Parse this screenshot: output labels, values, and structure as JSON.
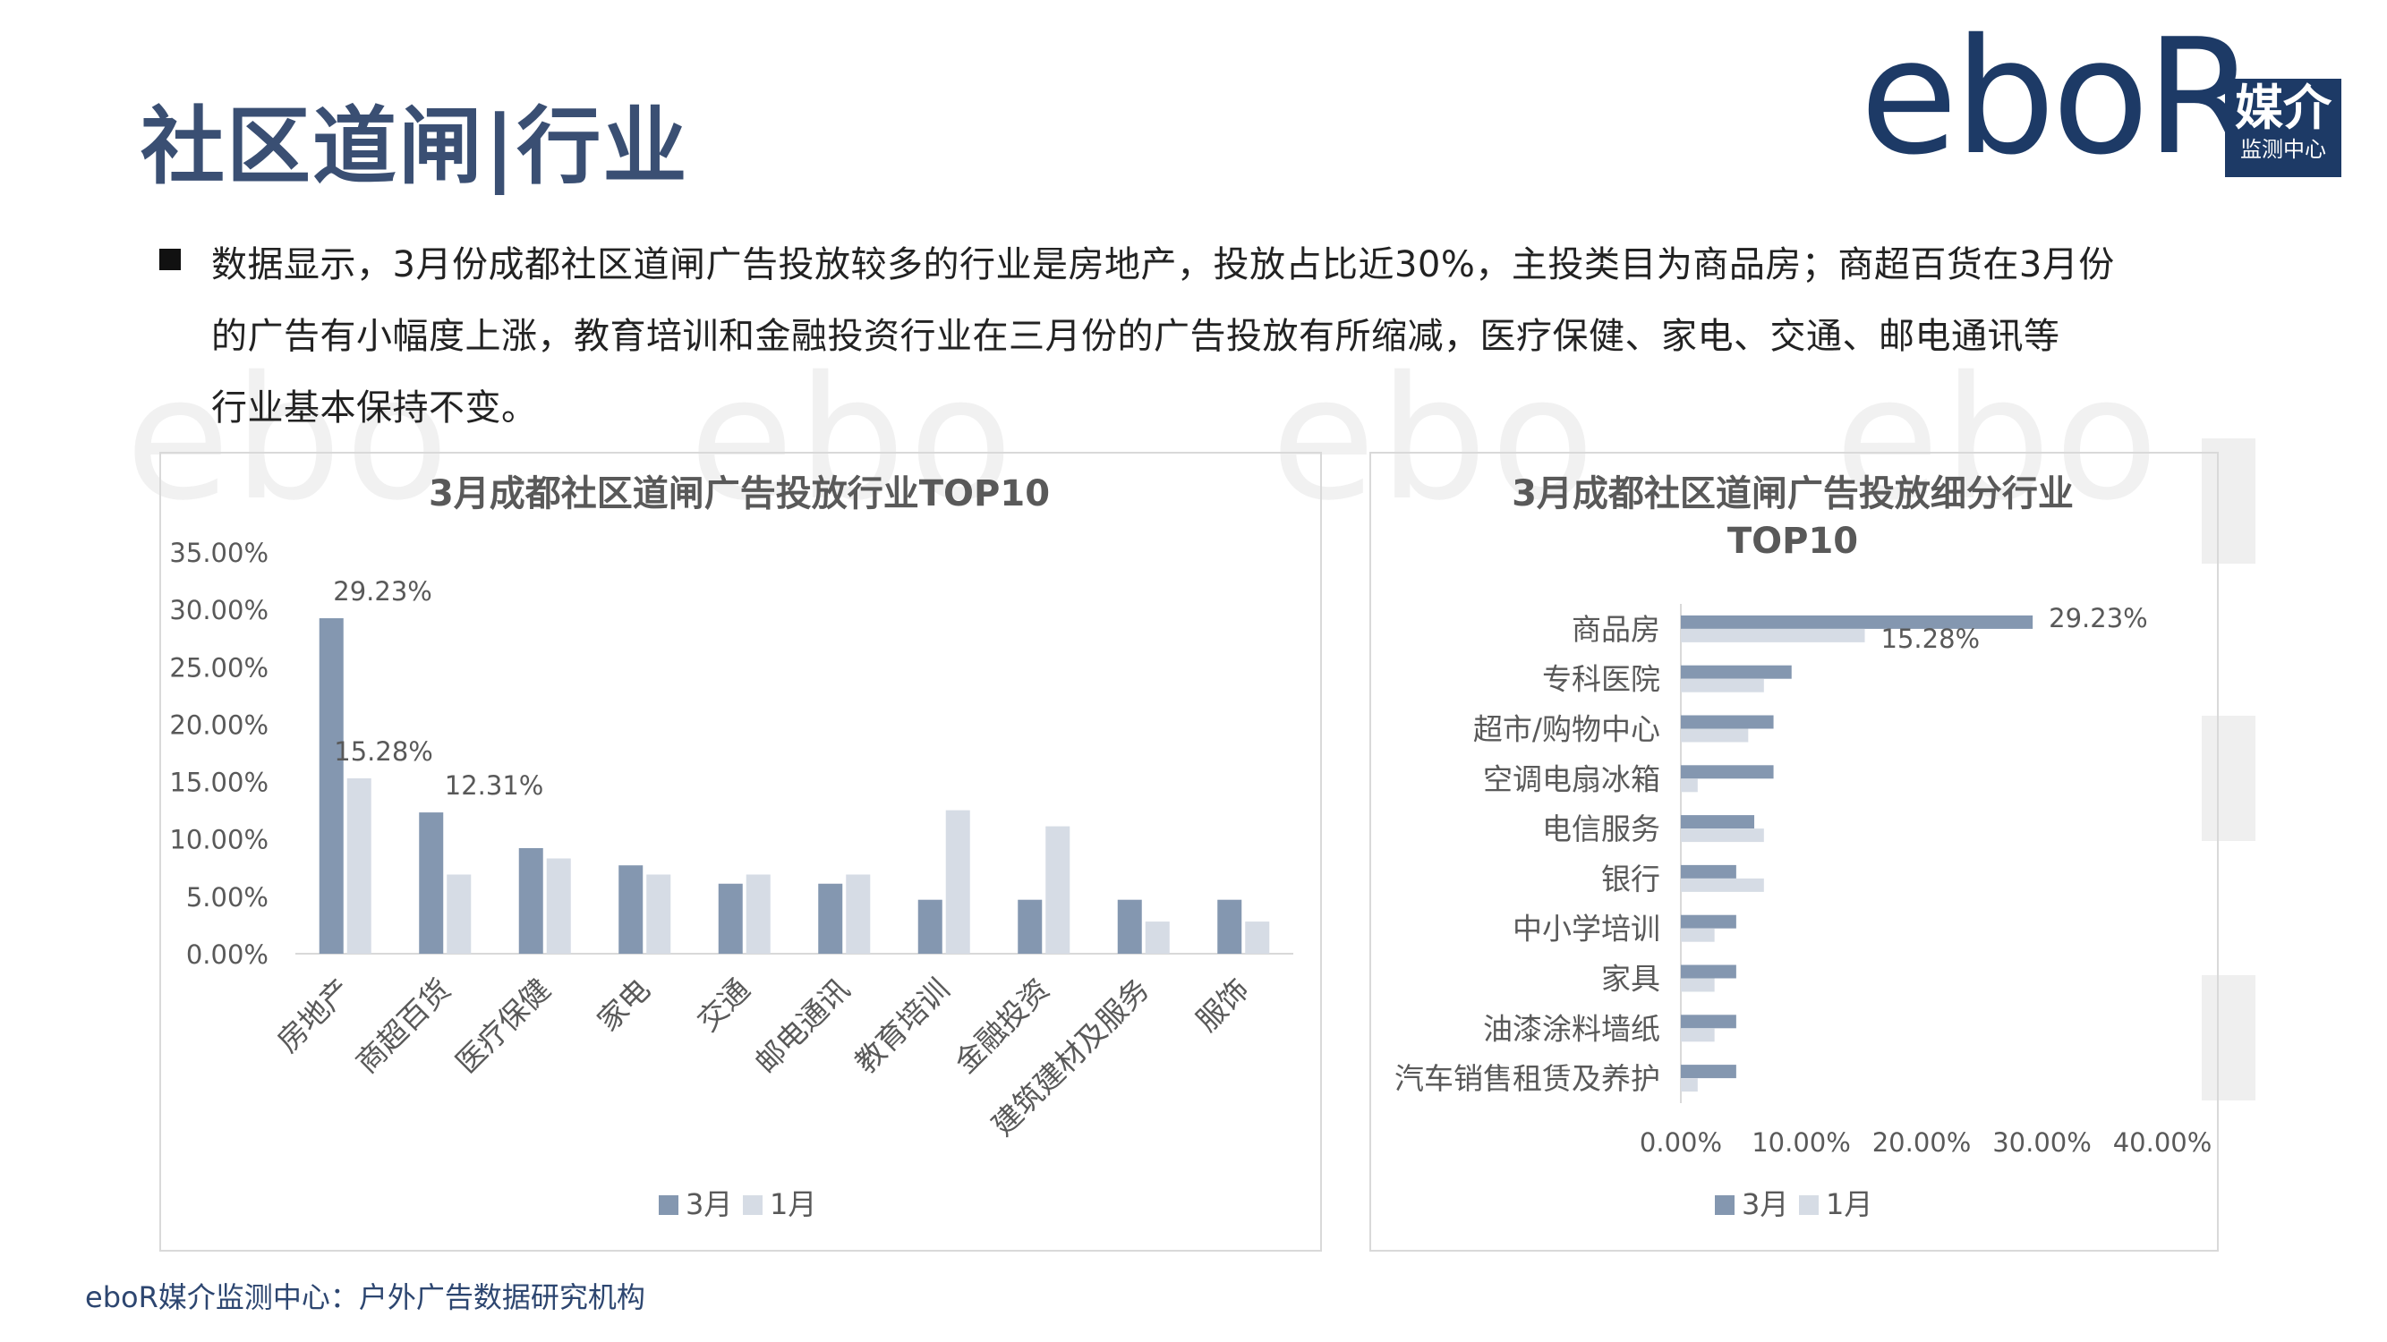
{
  "header": {
    "title": "社区道闸|行业",
    "logo_text": "eboR",
    "logo_badge_main": "媒介",
    "logo_badge_sub": "监测中心"
  },
  "paragraph": [
    "数据显示，3月份成都社区道闸广告投放较多的行业是房地产，投放占比近30%，主投类目为商品房；商超百货在3月份",
    "的广告有小幅度上涨，教育培训和金融投资行业在三月份的广告投放有所缩减，医疗保健、家电、交通、邮电通讯等",
    "行业基本保持不变。"
  ],
  "footer": "eboR媒介监测中心：户外广告数据研究机构",
  "colors": {
    "march": "#8497b0",
    "january": "#d6dce5",
    "title": "#3a4f73",
    "logo": "#1d3a66"
  },
  "chart_data": [
    {
      "type": "bar",
      "title": "3月成都社区道闸广告投放行业TOP10",
      "categories": [
        "房地产",
        "商超百货",
        "医疗保健",
        "家电",
        "交通",
        "邮电通讯",
        "教育培训",
        "金融投资",
        "建筑建材及服务",
        "服饰"
      ],
      "series": [
        {
          "name": "3月",
          "values": [
            29.23,
            12.31,
            9.2,
            7.7,
            6.1,
            6.1,
            4.7,
            4.7,
            4.7,
            4.7
          ]
        },
        {
          "name": "1月",
          "values": [
            15.28,
            6.9,
            8.3,
            6.9,
            6.9,
            6.9,
            12.5,
            11.1,
            2.8,
            2.8
          ]
        }
      ],
      "data_labels": [
        {
          "series": 0,
          "index": 0,
          "text": "29.23%"
        },
        {
          "series": 1,
          "index": 0,
          "text": "15.28%"
        },
        {
          "series": 0,
          "index": 1,
          "text": "12.31%"
        }
      ],
      "yticks": [
        "0.00%",
        "5.00%",
        "10.00%",
        "15.00%",
        "20.00%",
        "25.00%",
        "30.00%",
        "35.00%"
      ],
      "ylim": [
        0,
        35
      ],
      "legend": "bottom",
      "grid": false
    },
    {
      "type": "bar",
      "orientation": "horizontal",
      "title": [
        "3月成都社区道闸广告投放细分行业",
        "TOP10"
      ],
      "categories": [
        "商品房",
        "专科医院",
        "超市/购物中心",
        "空调电扇冰箱",
        "电信服务",
        "银行",
        "中小学培训",
        "家具",
        "油漆涂料墙纸",
        "汽车销售租赁及养护"
      ],
      "series": [
        {
          "name": "3月",
          "values": [
            29.23,
            9.2,
            7.7,
            7.7,
            6.1,
            4.6,
            4.6,
            4.6,
            4.6,
            4.6
          ]
        },
        {
          "name": "1月",
          "values": [
            15.28,
            6.9,
            5.6,
            1.4,
            6.9,
            6.9,
            2.8,
            2.8,
            2.8,
            1.4
          ]
        }
      ],
      "data_labels": [
        {
          "series": 0,
          "index": 0,
          "text": "29.23%"
        },
        {
          "series": 1,
          "index": 0,
          "text": "15.28%"
        }
      ],
      "xticks": [
        "0.00%",
        "10.00%",
        "20.00%",
        "30.00%",
        "40.00%"
      ],
      "xlim": [
        0,
        40
      ],
      "legend": "bottom",
      "grid": false
    }
  ]
}
